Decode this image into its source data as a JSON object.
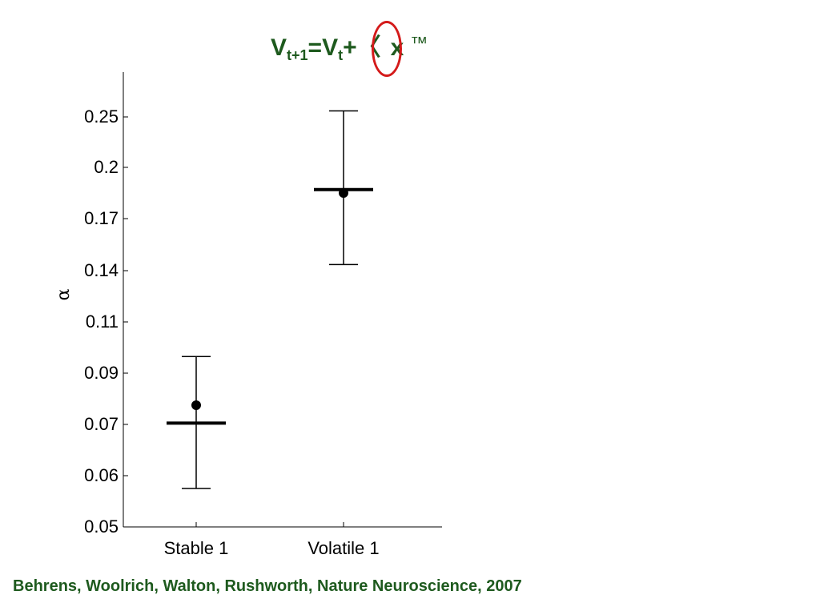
{
  "formula": {
    "v1": "V",
    "sub1": "t+1",
    "eq": "=V",
    "sub2": "t",
    "plus": "+〈",
    "x": "x",
    "tm": "™"
  },
  "citation": "Behrens, Woolrich, Walton, Rushworth, Nature Neuroscience, 2007",
  "colors": {
    "text_green": "#1e5a1e",
    "highlight_red": "#d41a1a",
    "ink": "#000000"
  },
  "chart_data": {
    "type": "scatter",
    "categories": [
      "Stable 1",
      "Volatile 1"
    ],
    "ylabel": "α",
    "yticks": [
      "0.05",
      "0.06",
      "0.07",
      "0.09",
      "0.11",
      "0.14",
      "0.17",
      "0.2",
      "0.25"
    ],
    "ylim": [
      0.05,
      0.28
    ],
    "series": [
      {
        "points": [
          0.0775,
          0.185
        ],
        "bars": [
          0.0705,
          0.187
        ],
        "error_low": [
          0.0575,
          0.1435
        ],
        "error_high": [
          0.0965,
          0.256
        ]
      }
    ],
    "grid": false
  }
}
